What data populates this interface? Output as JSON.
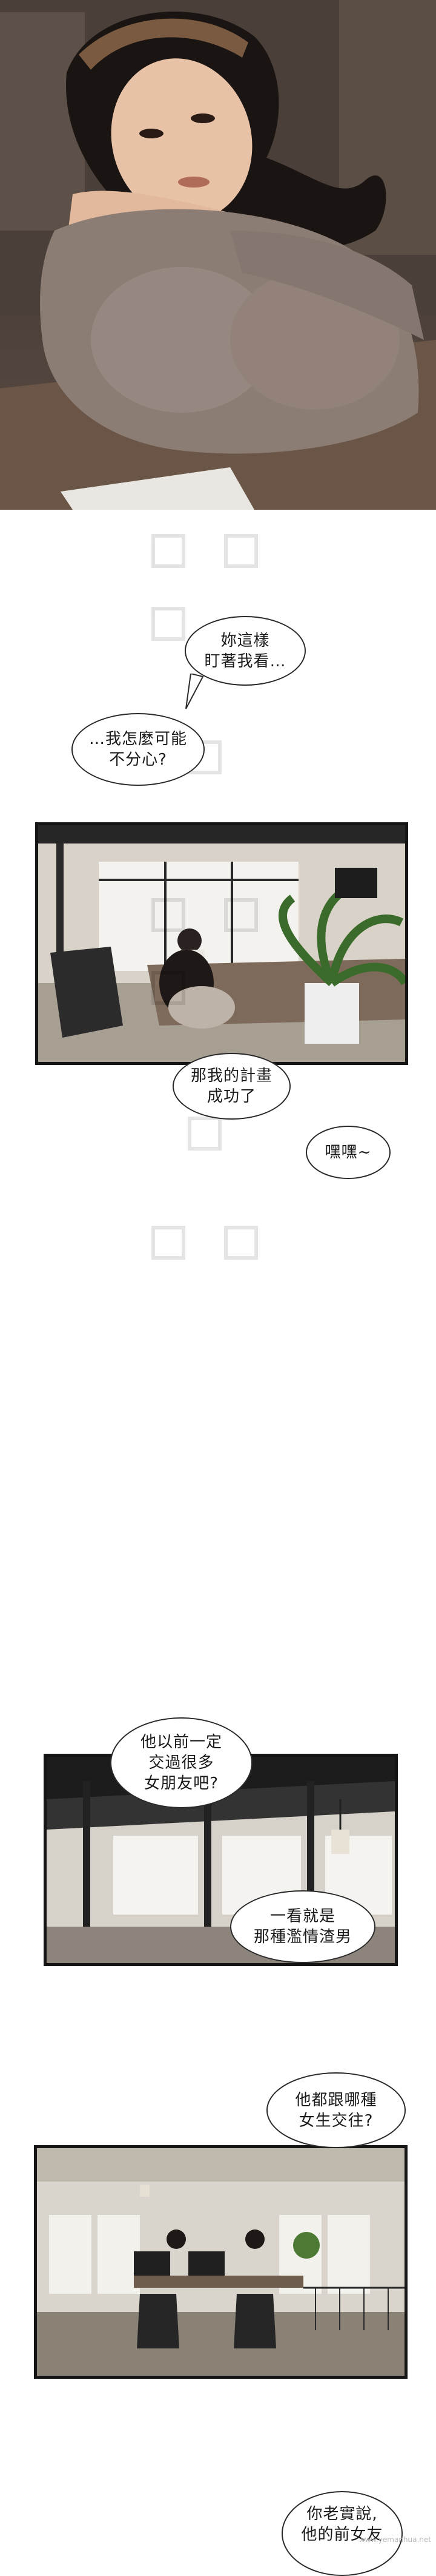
{
  "bubbles": {
    "b1": "妳這樣\n盯著我看…",
    "b2": "…我怎麼可能\n不分心?",
    "b3": "那我的計畫\n成功了",
    "b4": "嘿嘿~",
    "b5": "他以前一定\n交過很多\n女朋友吧?",
    "b6": "一看就是\n那種濫情渣男",
    "b7": "他都跟哪種\n女生交往?",
    "b8": "你老實說,\n他的前女友"
  },
  "footer": {
    "site": "www.yemanhua.net"
  }
}
